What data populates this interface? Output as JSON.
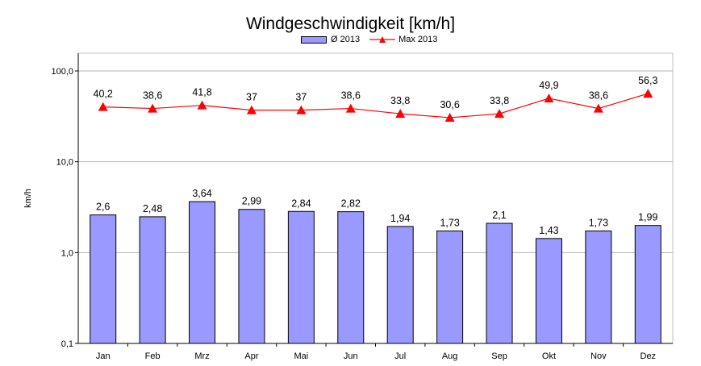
{
  "chart_data": {
    "type": "bar",
    "title": "Windgeschwindigkeit [km/h]",
    "ylabel": "km/h",
    "xlabel": "",
    "y_scale": "log",
    "ylim": [
      0.1,
      100
    ],
    "yticks": [
      "0,1",
      "1,0",
      "10,0",
      "100,0"
    ],
    "y_tick_values": [
      0.1,
      1,
      10,
      100
    ],
    "grid": true,
    "legend_position": "top-center",
    "categories": [
      "Jan",
      "Feb",
      "Mrz",
      "Apr",
      "Mai",
      "Jun",
      "Jul",
      "Aug",
      "Sep",
      "Okt",
      "Nov",
      "Dez"
    ],
    "series": [
      {
        "name": "Ø 2013",
        "kind": "bar",
        "color": "#9999ff",
        "values": [
          2.6,
          2.48,
          3.64,
          2.99,
          2.84,
          2.82,
          1.94,
          1.73,
          2.1,
          1.43,
          1.73,
          1.99
        ],
        "labels": [
          "2,6",
          "2,48",
          "3,64",
          "2,99",
          "2,84",
          "2,82",
          "1,94",
          "1,73",
          "2,1",
          "1,43",
          "1,73",
          "1,99"
        ]
      },
      {
        "name": "Max 2013",
        "kind": "line",
        "color": "#ff0000",
        "marker": "triangle",
        "values": [
          40.2,
          38.6,
          41.8,
          37,
          37,
          38.6,
          33.8,
          30.6,
          33.8,
          49.9,
          38.6,
          56.3
        ],
        "labels": [
          "40,2",
          "38,6",
          "41,8",
          "37",
          "37",
          "38,6",
          "33,8",
          "30,6",
          "33,8",
          "49,9",
          "38,6",
          "56,3"
        ]
      }
    ]
  }
}
